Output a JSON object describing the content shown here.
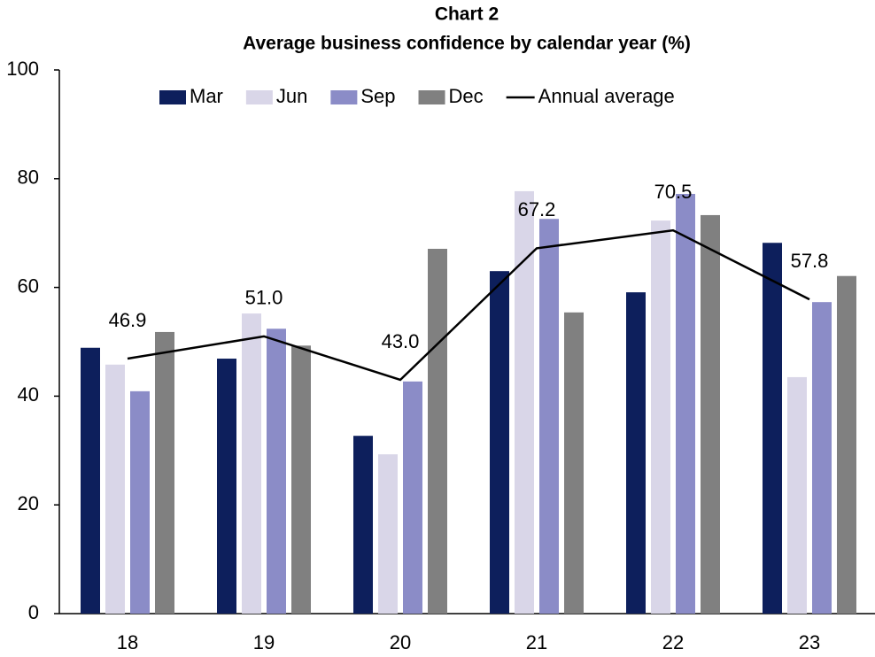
{
  "chart_data": {
    "type": "bar",
    "title": "Chart 2",
    "subtitle": "Average business confidence by calendar year (%)",
    "categories": [
      "18",
      "19",
      "20",
      "21",
      "22",
      "23"
    ],
    "series": [
      {
        "name": "Mar",
        "color": "#0d1f5c",
        "values": [
          48.9,
          46.9,
          32.7,
          63.0,
          59.1,
          68.2
        ]
      },
      {
        "name": "Jun",
        "color": "#d9d6e8",
        "values": [
          45.8,
          55.2,
          29.3,
          77.7,
          72.3,
          43.5
        ]
      },
      {
        "name": "Sep",
        "color": "#8b8cc7",
        "values": [
          40.9,
          52.4,
          42.7,
          72.6,
          77.2,
          57.3
        ]
      },
      {
        "name": "Dec",
        "color": "#808080",
        "values": [
          51.8,
          49.3,
          67.1,
          55.4,
          73.3,
          62.1
        ]
      },
      {
        "name": "Annual average",
        "type": "line",
        "color": "#000000",
        "values": [
          46.9,
          51.0,
          43.0,
          67.2,
          70.5,
          57.8
        ],
        "value_labels": [
          "46.9",
          "51.0",
          "43.0",
          "67.2",
          "70.5",
          "57.8"
        ]
      }
    ],
    "ylim": [
      0,
      100
    ],
    "yticks": [
      0,
      20,
      40,
      60,
      80,
      100
    ],
    "legend": "top",
    "grid": false
  }
}
